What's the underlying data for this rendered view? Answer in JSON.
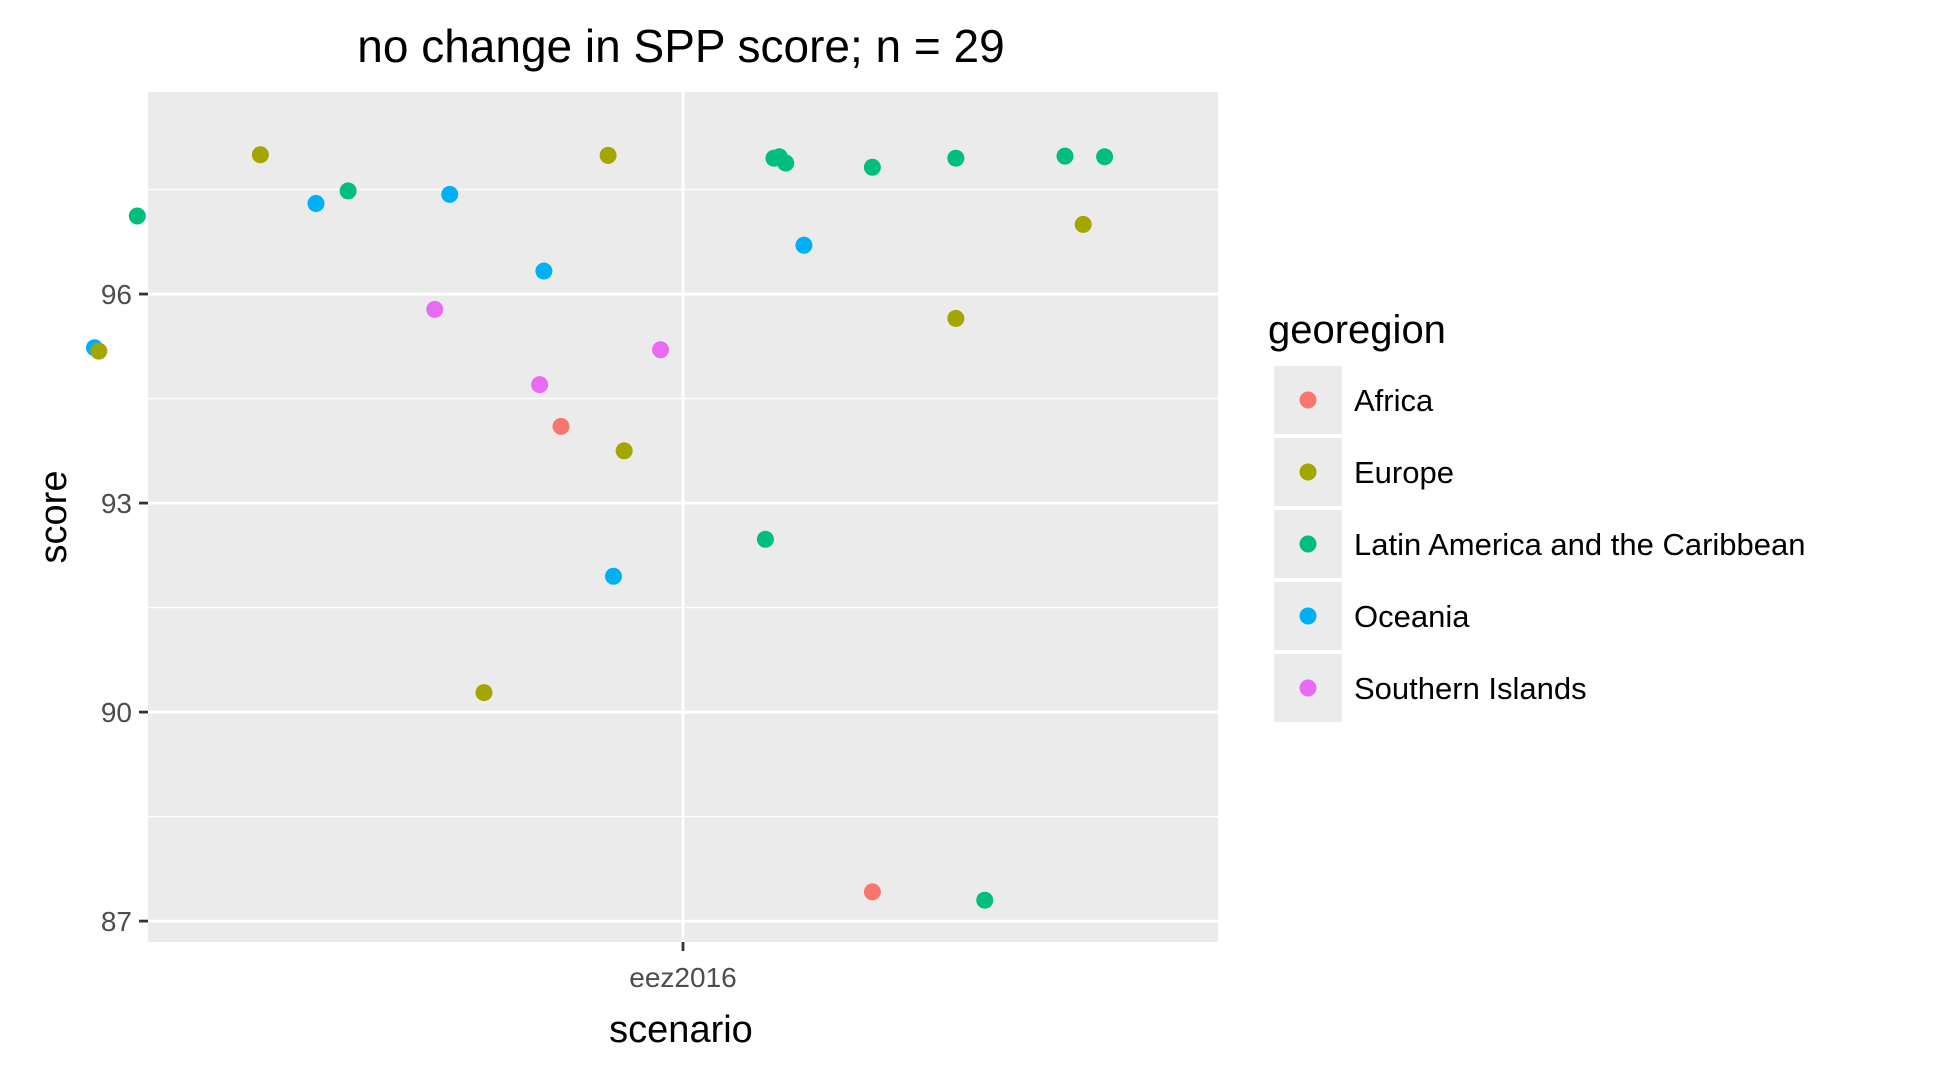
{
  "chart_data": {
    "type": "scatter",
    "title": "no change in SPP score; n = 29",
    "xlabel": "scenario",
    "ylabel": "score",
    "x_categories": [
      "eez2016"
    ],
    "y_ticks": [
      87,
      90,
      93,
      96
    ],
    "ylim": [
      86.7,
      98.9
    ],
    "grid": true,
    "jitter": "horizontal",
    "legend": {
      "title": "georegion",
      "placement": "right",
      "entries": [
        {
          "name": "Africa",
          "color": "#F8766D"
        },
        {
          "name": "Europe",
          "color": "#A3A500"
        },
        {
          "name": "Latin America and the Caribbean",
          "color": "#00BF7D"
        },
        {
          "name": "Oceania",
          "color": "#00B0F6"
        },
        {
          "name": "Southern Islands",
          "color": "#E76BF3"
        }
      ]
    },
    "points": [
      {
        "category": "eez2016",
        "jitter": -0.395,
        "y": 98.0,
        "group": "Europe"
      },
      {
        "category": "eez2016",
        "jitter": -0.313,
        "y": 97.48,
        "group": "Latin America and the Caribbean"
      },
      {
        "category": "eez2016",
        "jitter": -0.343,
        "y": 97.3,
        "group": "Oceania"
      },
      {
        "category": "eez2016",
        "jitter": -0.51,
        "y": 97.12,
        "group": "Latin America and the Caribbean"
      },
      {
        "category": "eez2016",
        "jitter": -0.218,
        "y": 97.43,
        "group": "Oceania"
      },
      {
        "category": "eez2016",
        "jitter": -0.13,
        "y": 96.33,
        "group": "Oceania"
      },
      {
        "category": "eez2016",
        "jitter": -0.232,
        "y": 95.78,
        "group": "Southern Islands"
      },
      {
        "category": "eez2016",
        "jitter": -0.55,
        "y": 95.23,
        "group": "Oceania"
      },
      {
        "category": "eez2016",
        "jitter": -0.546,
        "y": 95.18,
        "group": "Europe"
      },
      {
        "category": "eez2016",
        "jitter": -0.134,
        "y": 94.7,
        "group": "Southern Islands"
      },
      {
        "category": "eez2016",
        "jitter": -0.114,
        "y": 94.1,
        "group": "Africa"
      },
      {
        "category": "eez2016",
        "jitter": -0.07,
        "y": 97.99,
        "group": "Europe"
      },
      {
        "category": "eez2016",
        "jitter": -0.055,
        "y": 93.75,
        "group": "Europe"
      },
      {
        "category": "eez2016",
        "jitter": -0.021,
        "y": 95.2,
        "group": "Southern Islands"
      },
      {
        "category": "eez2016",
        "jitter": -0.065,
        "y": 91.95,
        "group": "Oceania"
      },
      {
        "category": "eez2016",
        "jitter": -0.186,
        "y": 90.28,
        "group": "Europe"
      },
      {
        "category": "eez2016",
        "jitter": 0.085,
        "y": 97.95,
        "group": "Latin America and the Caribbean"
      },
      {
        "category": "eez2016",
        "jitter": 0.09,
        "y": 97.97,
        "group": "Latin America and the Caribbean"
      },
      {
        "category": "eez2016",
        "jitter": 0.096,
        "y": 97.88,
        "group": "Latin America and the Caribbean"
      },
      {
        "category": "eez2016",
        "jitter": 0.177,
        "y": 97.82,
        "group": "Latin America and the Caribbean"
      },
      {
        "category": "eez2016",
        "jitter": 0.255,
        "y": 97.95,
        "group": "Latin America and the Caribbean"
      },
      {
        "category": "eez2016",
        "jitter": 0.357,
        "y": 97.98,
        "group": "Latin America and the Caribbean"
      },
      {
        "category": "eez2016",
        "jitter": 0.394,
        "y": 97.97,
        "group": "Latin America and the Caribbean"
      },
      {
        "category": "eez2016",
        "jitter": 0.374,
        "y": 97.0,
        "group": "Europe"
      },
      {
        "category": "eez2016",
        "jitter": 0.113,
        "y": 96.7,
        "group": "Oceania"
      },
      {
        "category": "eez2016",
        "jitter": 0.255,
        "y": 95.65,
        "group": "Europe"
      },
      {
        "category": "eez2016",
        "jitter": 0.077,
        "y": 92.48,
        "group": "Latin America and the Caribbean"
      },
      {
        "category": "eez2016",
        "jitter": 0.177,
        "y": 87.42,
        "group": "Africa"
      },
      {
        "category": "eez2016",
        "jitter": 0.282,
        "y": 87.3,
        "group": "Latin America and the Caribbean"
      }
    ]
  }
}
